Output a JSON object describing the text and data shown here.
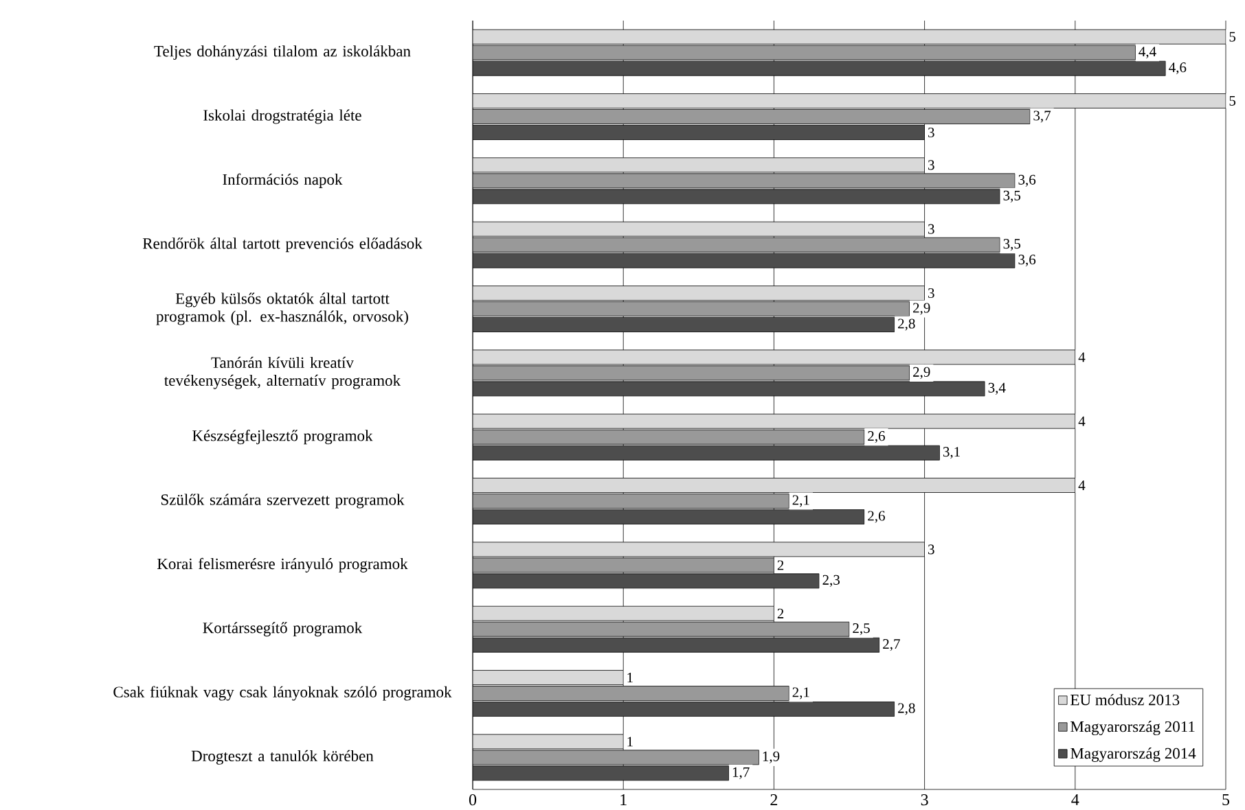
{
  "chart_data": {
    "type": "bar",
    "orientation": "horizontal",
    "categories": [
      "Teljes dohányzási tilalom az iskolákban",
      "Iskolai drogstratégia léte",
      "Információs napok",
      "Rendőrök által tartott prevenciós előadások",
      "Egyéb külsős oktatók által tartott programok (pl. ex-használók, orvosok)",
      "Tanórán kívüli kreatív tevékenységek, alternatív programok",
      "Készségfejlesztő programok",
      "Szülők számára szervezett programok",
      "Korai felismerésre irányuló programok",
      "Kortárssegítő programok",
      "Csak fiúknak vagy csak lányoknak szóló programok",
      "Drogteszt a tanulók körében"
    ],
    "series": [
      {
        "name": "EU módusz 2013",
        "color": "#d9d9d9",
        "values": [
          5,
          5,
          3,
          3,
          3,
          4,
          4,
          4,
          3,
          2,
          1,
          1
        ],
        "value_labels": [
          "5",
          "5",
          "3",
          "3",
          "3",
          "4",
          "4",
          "4",
          "3",
          "2",
          "1",
          "1"
        ]
      },
      {
        "name": "Magyarország 2011",
        "color": "#999999",
        "values": [
          4.4,
          3.7,
          3.6,
          3.5,
          2.9,
          2.9,
          2.6,
          2.1,
          2,
          2.5,
          2.1,
          1.9
        ],
        "value_labels": [
          "4,4",
          "3,7",
          "3,6",
          "3,5",
          "2,9",
          "2,9",
          "2,6",
          "2,1",
          "2",
          "2,5",
          "2,1",
          "1,9"
        ]
      },
      {
        "name": "Magyarország 2014",
        "color": "#4d4d4d",
        "values": [
          4.6,
          3,
          3.5,
          3.6,
          2.8,
          3.4,
          3.1,
          2.6,
          2.3,
          2.7,
          2.8,
          1.7
        ],
        "value_labels": [
          "4,6",
          "3",
          "3,5",
          "3,6",
          "2,8",
          "3,4",
          "3,1",
          "2,6",
          "2,3",
          "2,7",
          "2,8",
          "1,7"
        ]
      }
    ],
    "xlim": [
      0,
      5
    ],
    "xticks": [
      0,
      1,
      2,
      3,
      4,
      5
    ],
    "grid": "x",
    "legend": "bottom right"
  }
}
